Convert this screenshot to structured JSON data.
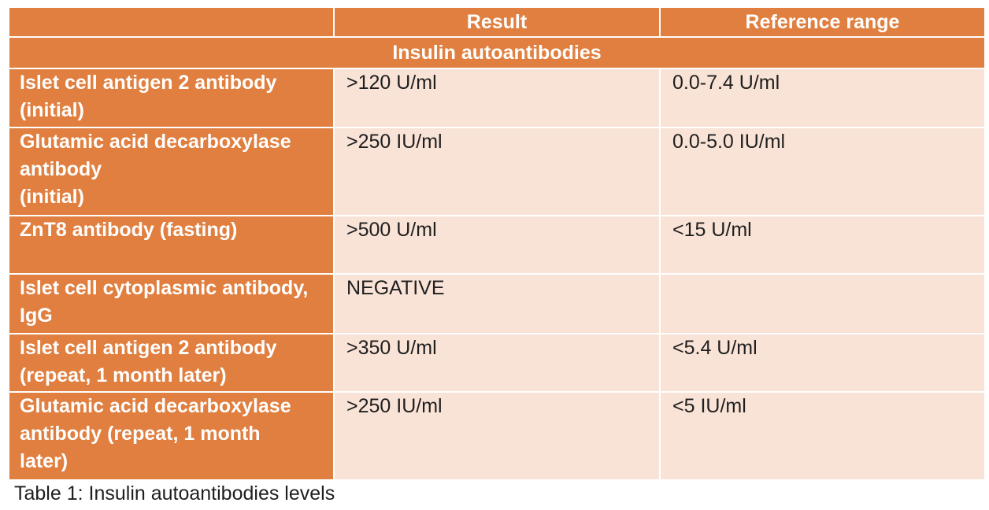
{
  "table": {
    "headers": {
      "empty": "",
      "result": "Result",
      "reference_range": "Reference range"
    },
    "section_title": "Insulin autoantibodies",
    "rows": [
      {
        "label_lines": [
          "Islet cell antigen 2 antibody",
          "(initial)"
        ],
        "result": ">120 U/ml",
        "reference": "0.0-7.4 U/ml"
      },
      {
        "label_lines": [
          "Glutamic acid decarboxylase",
          "antibody",
          "(initial)"
        ],
        "result": ">250 IU/ml",
        "reference": "0.0-5.0 IU/ml"
      },
      {
        "label_lines": [
          "ZnT8 antibody (fasting)"
        ],
        "result": ">500 U/ml",
        "reference": "<15 U/ml"
      },
      {
        "label_lines": [
          "Islet cell cytoplasmic antibody,",
          "IgG"
        ],
        "result": "NEGATIVE",
        "reference": ""
      },
      {
        "label_lines": [
          "Islet cell antigen 2 antibody",
          "(repeat, 1 month later)"
        ],
        "result": ">350 U/ml",
        "reference": "<5.4 U/ml"
      },
      {
        "label_lines": [
          "Glutamic acid decarboxylase",
          "antibody (repeat, 1 month",
          "later)"
        ],
        "result": ">250 IU/ml",
        "reference": "<5 IU/ml"
      }
    ]
  },
  "caption": "Table 1: Insulin autoantibodies levels",
  "colors": {
    "header_orange": "#e07f3f",
    "cell_peach": "#f9e3d6",
    "header_text": "#ffffff",
    "body_text": "#1f1f1f"
  }
}
